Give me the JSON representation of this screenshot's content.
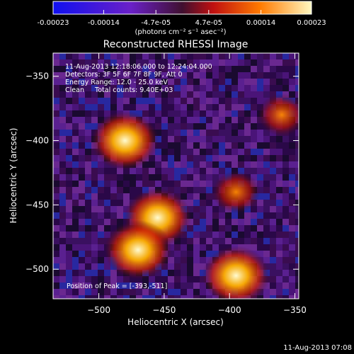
{
  "colorbar": {
    "ticks": [
      "-0.00023",
      "-0.00014",
      "-4.7e-05",
      "4.7e-05",
      "0.00014",
      "0.00023"
    ],
    "tick_values": [
      -0.00023,
      -0.00014,
      -4.7e-05,
      4.7e-05,
      0.00014,
      0.00023
    ],
    "unit_label": "(photons cm⁻² s⁻¹ asec⁻²)",
    "range": [
      -0.00023,
      0.00023
    ],
    "colors": [
      "#1010f0",
      "#6a20c8",
      "#401030",
      "#c01010",
      "#ff7a00",
      "#fff8c0"
    ]
  },
  "chart_data": {
    "type": "heatmap",
    "title": "Reconstructed RHESSI Image",
    "xlabel": "Heliocentric X (arcsec)",
    "ylabel": "Heliocentric Y (arcsec)",
    "xlim": [
      -535,
      -347
    ],
    "ylim": [
      -523,
      -332
    ],
    "x_ticks": [
      -500,
      -450,
      -400,
      -350
    ],
    "y_ticks": [
      -350,
      -400,
      -450,
      -500
    ],
    "annotations": [
      "11-Aug-2013 12:18:06.000 to 12:24:04.000",
      "Detectors: 3F 5F 6F 7F 8F 9F, Att 0",
      "Energy Range: 12.0 - 25.0 keV",
      "Clean     Total counts: 9.40E+03"
    ],
    "peak_label": "Position of Peak = [-393,-511]",
    "peak": [
      -393,
      -511
    ],
    "bright_regions": [
      {
        "x": -480,
        "y": -400,
        "level": "high"
      },
      {
        "x": -455,
        "y": -460,
        "level": "high"
      },
      {
        "x": -470,
        "y": -485,
        "level": "high"
      },
      {
        "x": -395,
        "y": -505,
        "level": "high"
      },
      {
        "x": -360,
        "y": -380,
        "level": "medium"
      },
      {
        "x": -395,
        "y": -440,
        "level": "medium"
      }
    ]
  },
  "footer": {
    "timestamp": "11-Aug-2013 07:08"
  }
}
